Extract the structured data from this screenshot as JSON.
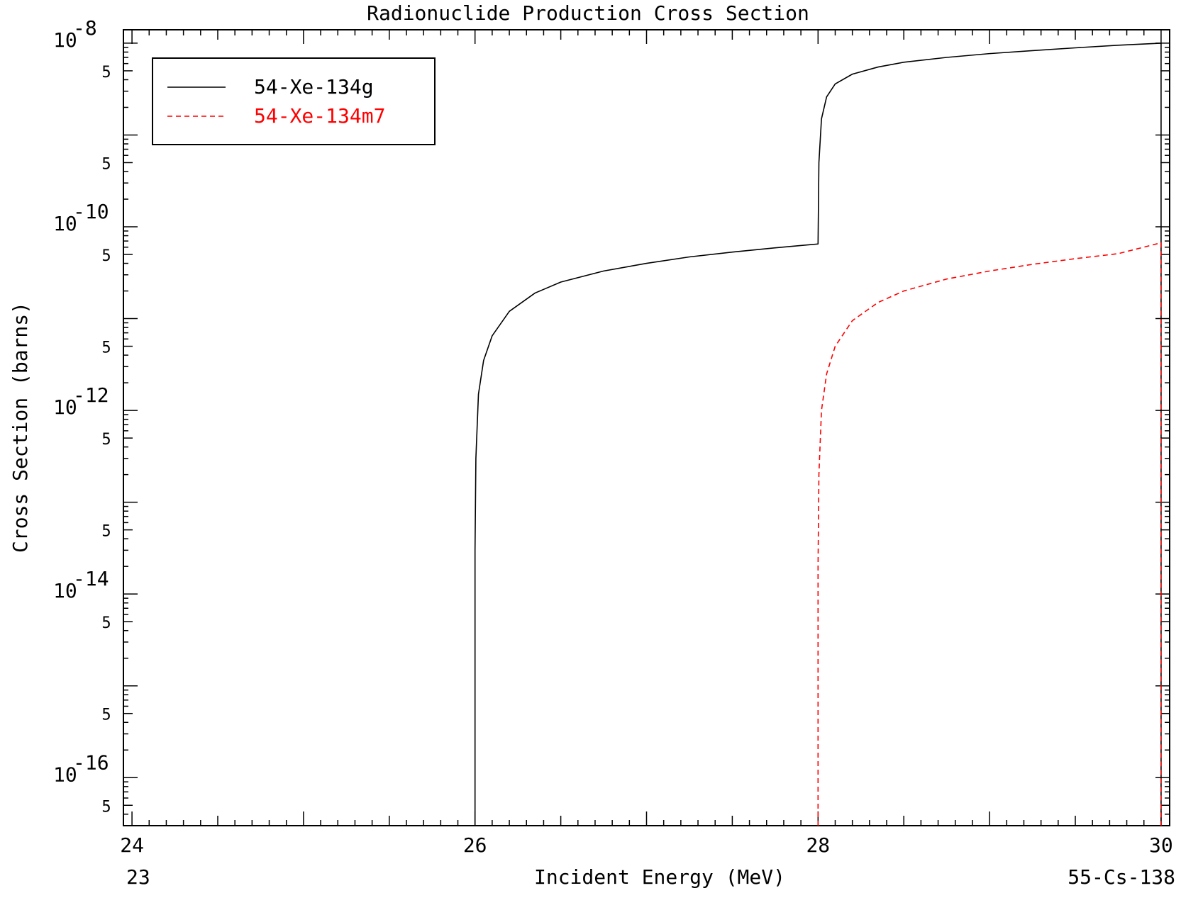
{
  "chart_data": {
    "type": "line",
    "title": "Radionuclide Production Cross Section",
    "xlabel": "Incident Energy (MeV)",
    "ylabel": "Cross Section (barns)",
    "x_scale": "linear",
    "y_scale": "log",
    "xlim": [
      23.95,
      30.05
    ],
    "ylim": [
      3e-17,
      1.4e-08
    ],
    "x_ticks": [
      "24",
      "26",
      "28",
      "30"
    ],
    "y_ticks": [
      {
        "base": "10",
        "exp": "-8",
        "value": 1e-08
      },
      {
        "base": "10",
        "exp": "-10",
        "value": 1e-10
      },
      {
        "base": "10",
        "exp": "-12",
        "value": 1e-12
      },
      {
        "base": "10",
        "exp": "-14",
        "value": 1e-14
      },
      {
        "base": "10",
        "exp": "-16",
        "value": 1e-16
      }
    ],
    "y_minor_label": "5",
    "footer_left": "23",
    "footer_right": "55-Cs-138",
    "legend_position": "top-left",
    "series": [
      {
        "name": "54-Xe-134g",
        "color": "#000000",
        "dash": "solid",
        "points": [
          [
            26.0,
            3e-17
          ],
          [
            26.0,
            3e-14
          ],
          [
            26.005,
            3e-13
          ],
          [
            26.02,
            1.5e-12
          ],
          [
            26.05,
            3.5e-12
          ],
          [
            26.1,
            6.5e-12
          ],
          [
            26.2,
            1.2e-11
          ],
          [
            26.35,
            1.9e-11
          ],
          [
            26.5,
            2.5e-11
          ],
          [
            26.75,
            3.3e-11
          ],
          [
            27.0,
            4e-11
          ],
          [
            27.25,
            4.7e-11
          ],
          [
            27.5,
            5.3e-11
          ],
          [
            27.75,
            5.9e-11
          ],
          [
            28.0,
            6.5e-11
          ],
          [
            28.005,
            5e-10
          ],
          [
            28.02,
            1.5e-09
          ],
          [
            28.05,
            2.6e-09
          ],
          [
            28.1,
            3.6e-09
          ],
          [
            28.2,
            4.6e-09
          ],
          [
            28.35,
            5.5e-09
          ],
          [
            28.5,
            6.2e-09
          ],
          [
            28.75,
            7e-09
          ],
          [
            29.0,
            7.7e-09
          ],
          [
            29.25,
            8.3e-09
          ],
          [
            29.5,
            8.9e-09
          ],
          [
            29.75,
            9.5e-09
          ],
          [
            30.0,
            1e-08
          ],
          [
            30.0,
            3e-17
          ]
        ]
      },
      {
        "name": "54-Xe-134m7",
        "color": "#ff0000",
        "dash": "dashed",
        "points": [
          [
            28.0,
            3e-17
          ],
          [
            28.0,
            2e-14
          ],
          [
            28.005,
            2e-13
          ],
          [
            28.02,
            1e-12
          ],
          [
            28.05,
            2.5e-12
          ],
          [
            28.1,
            5e-12
          ],
          [
            28.2,
            9.5e-12
          ],
          [
            28.35,
            1.5e-11
          ],
          [
            28.5,
            2e-11
          ],
          [
            28.75,
            2.7e-11
          ],
          [
            29.0,
            3.3e-11
          ],
          [
            29.25,
            3.9e-11
          ],
          [
            29.5,
            4.5e-11
          ],
          [
            29.75,
            5.1e-11
          ],
          [
            30.0,
            6.7e-11
          ],
          [
            30.0,
            3e-17
          ]
        ]
      }
    ]
  }
}
